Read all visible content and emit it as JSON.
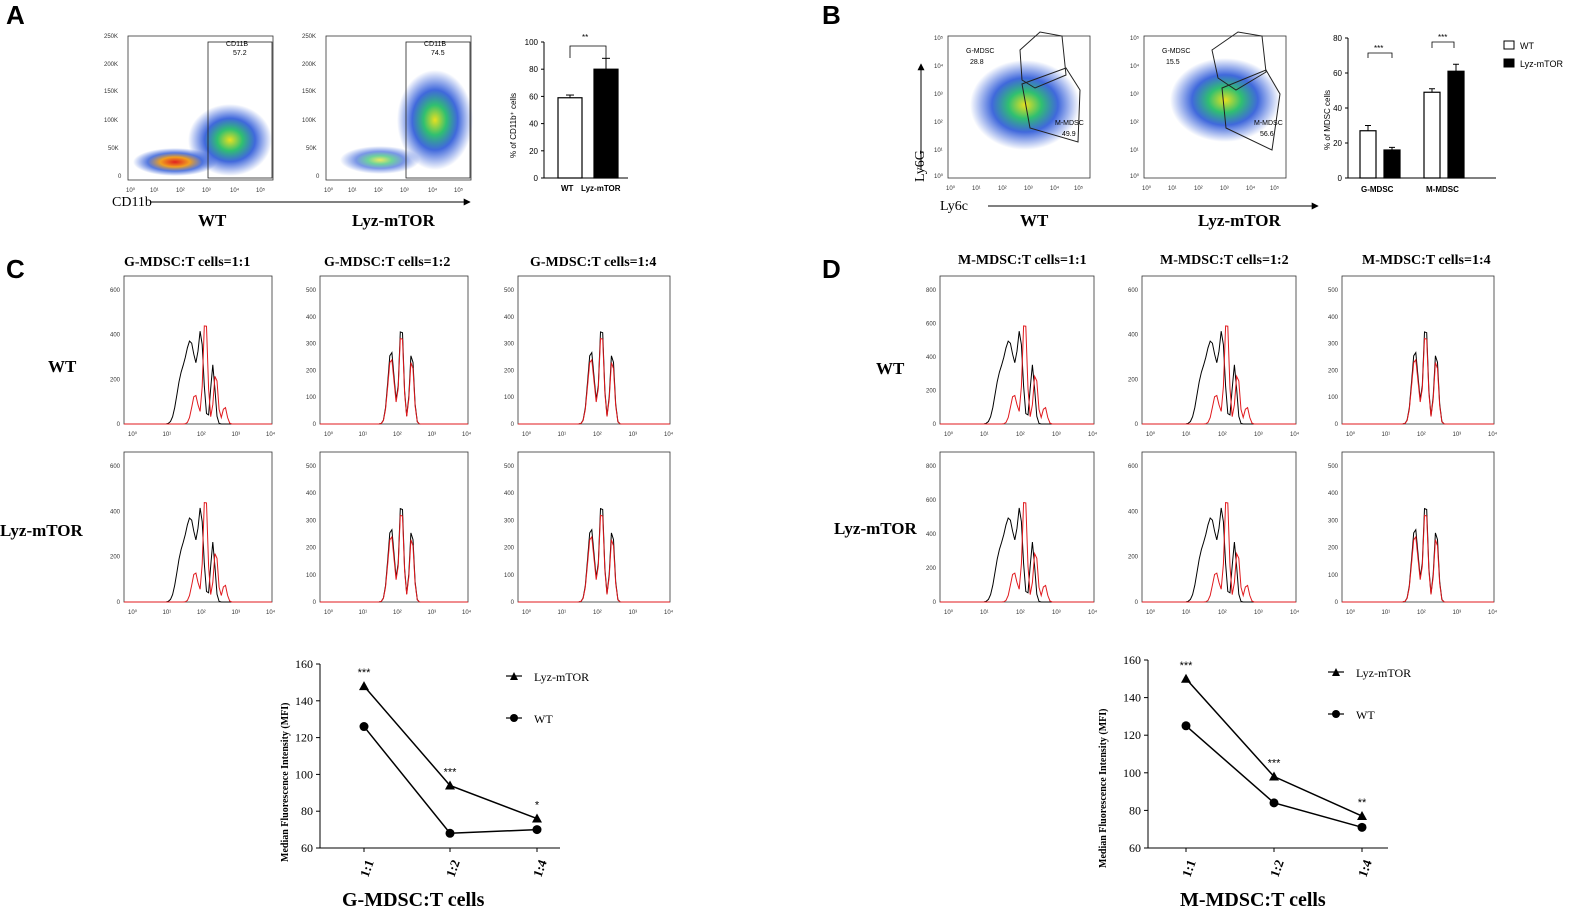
{
  "panels": {
    "A": "A",
    "B": "B",
    "C": "C",
    "D": "D"
  },
  "colors": {
    "wt": "#000000",
    "lyz": "#e0191d",
    "bar_wt": "#ffffff",
    "bar_lyz": "#000000"
  },
  "panel_a": {
    "flow_xlabel": "CD11b",
    "groups": [
      "WT",
      "Lyz-mTOR"
    ],
    "gates": [
      {
        "name": "CD11B",
        "value": "57.2"
      },
      {
        "name": "CD11B",
        "value": "74.5"
      }
    ],
    "y_ticks": [
      "250K",
      "200K",
      "150K",
      "100K",
      "50K",
      "0"
    ],
    "x_ticks": [
      "10⁰",
      "10¹",
      "10²",
      "10³",
      "10⁴",
      "10⁵"
    ]
  },
  "panel_b": {
    "flow_xlabel": "Ly6c",
    "flow_ylabel": "Ly6G",
    "groups": [
      "WT",
      "Lyz-mTOR"
    ],
    "gates": [
      {
        "g_name": "G-MDSC",
        "g_value": "28.8",
        "m_name": "M-MDSC",
        "m_value": "49.9"
      },
      {
        "g_name": "G-MDSC",
        "g_value": "15.5",
        "m_name": "M-MDSC",
        "m_value": "56.6"
      }
    ],
    "y_ticks": [
      "10⁵",
      "10⁴",
      "10³",
      "10²",
      "10¹",
      "10⁰"
    ],
    "x_ticks": [
      "10⁰",
      "10¹",
      "10²",
      "10³",
      "10⁴",
      "10⁵"
    ]
  },
  "panel_c": {
    "titles": [
      "G-MDSC:T cells=1:1",
      "G-MDSC:T cells=1:2",
      "G-MDSC:T cells=1:4"
    ],
    "row_labels": [
      "WT",
      "Lyz-mTOR"
    ],
    "y_ticks": [
      [
        "600",
        "400",
        "200",
        "0"
      ],
      [
        "500",
        "400",
        "300",
        "200",
        "100",
        "0"
      ],
      [
        "500",
        "400",
        "300",
        "200",
        "100",
        "0"
      ]
    ],
    "x_ticks": [
      "10⁰",
      "10¹",
      "10²",
      "10³",
      "10⁴"
    ]
  },
  "panel_d": {
    "titles": [
      "M-MDSC:T cells=1:1",
      "M-MDSC:T cells=1:2",
      "M-MDSC:T cells=1:4"
    ],
    "row_labels": [
      "WT",
      "Lyz-mTOR"
    ],
    "y_ticks": [
      [
        "800",
        "600",
        "400",
        "200",
        "0"
      ],
      [
        "600",
        "400",
        "200",
        "0"
      ],
      [
        "500",
        "400",
        "300",
        "200",
        "100",
        "0"
      ]
    ],
    "x_ticks": [
      "10⁰",
      "10¹",
      "10²",
      "10³",
      "10⁴"
    ]
  },
  "chart_data": [
    {
      "id": "A_bar",
      "type": "bar",
      "categories": [
        "WT",
        "Lyz-mTOR"
      ],
      "values": [
        59,
        80
      ],
      "errors": [
        2,
        8
      ],
      "ylabel": "% of CD11b⁺ cells",
      "ylim": [
        0,
        100
      ],
      "yticks": [
        0,
        20,
        40,
        60,
        80,
        100
      ],
      "significance": "**"
    },
    {
      "id": "B_bar",
      "type": "bar",
      "categories": [
        "G-MDSC",
        "M-MDSC"
      ],
      "series": [
        {
          "name": "WT",
          "values": [
            27,
            49
          ],
          "errors": [
            3,
            2
          ]
        },
        {
          "name": "Lyz-mTOR",
          "values": [
            16,
            61
          ],
          "errors": [
            1.5,
            4
          ]
        }
      ],
      "ylabel": "% of MDSC cells",
      "ylim": [
        0,
        80
      ],
      "yticks": [
        0,
        20,
        40,
        60,
        80
      ],
      "significance": [
        "***",
        "***"
      ],
      "legend": "top-right"
    },
    {
      "id": "C_line",
      "type": "line",
      "x": [
        "1:1",
        "1:2",
        "1:4"
      ],
      "series": [
        {
          "name": "Lyz-mTOR",
          "marker": "triangle",
          "values": [
            148,
            94,
            76
          ]
        },
        {
          "name": "WT",
          "marker": "circle",
          "values": [
            126,
            68,
            70
          ]
        }
      ],
      "significance": [
        "***",
        "***",
        "*"
      ],
      "xlabel": "G-MDSC:T cells",
      "ylabel": "Median Fluorescence Intensity (MFI)",
      "ylim": [
        60,
        160
      ],
      "yticks": [
        60,
        80,
        100,
        120,
        140,
        160
      ]
    },
    {
      "id": "D_line",
      "type": "line",
      "x": [
        "1:1",
        "1:2",
        "1:4"
      ],
      "series": [
        {
          "name": "Lyz-mTOR",
          "marker": "triangle",
          "values": [
            150,
            98,
            77
          ]
        },
        {
          "name": "WT",
          "marker": "circle",
          "values": [
            125,
            84,
            71
          ]
        }
      ],
      "significance": [
        "***",
        "***",
        "**"
      ],
      "xlabel": "M-MDSC:T cells",
      "ylabel": "Median Fluorescence Intensity (MFI)",
      "ylim": [
        60,
        160
      ],
      "yticks": [
        60,
        80,
        100,
        120,
        140,
        160
      ]
    }
  ]
}
